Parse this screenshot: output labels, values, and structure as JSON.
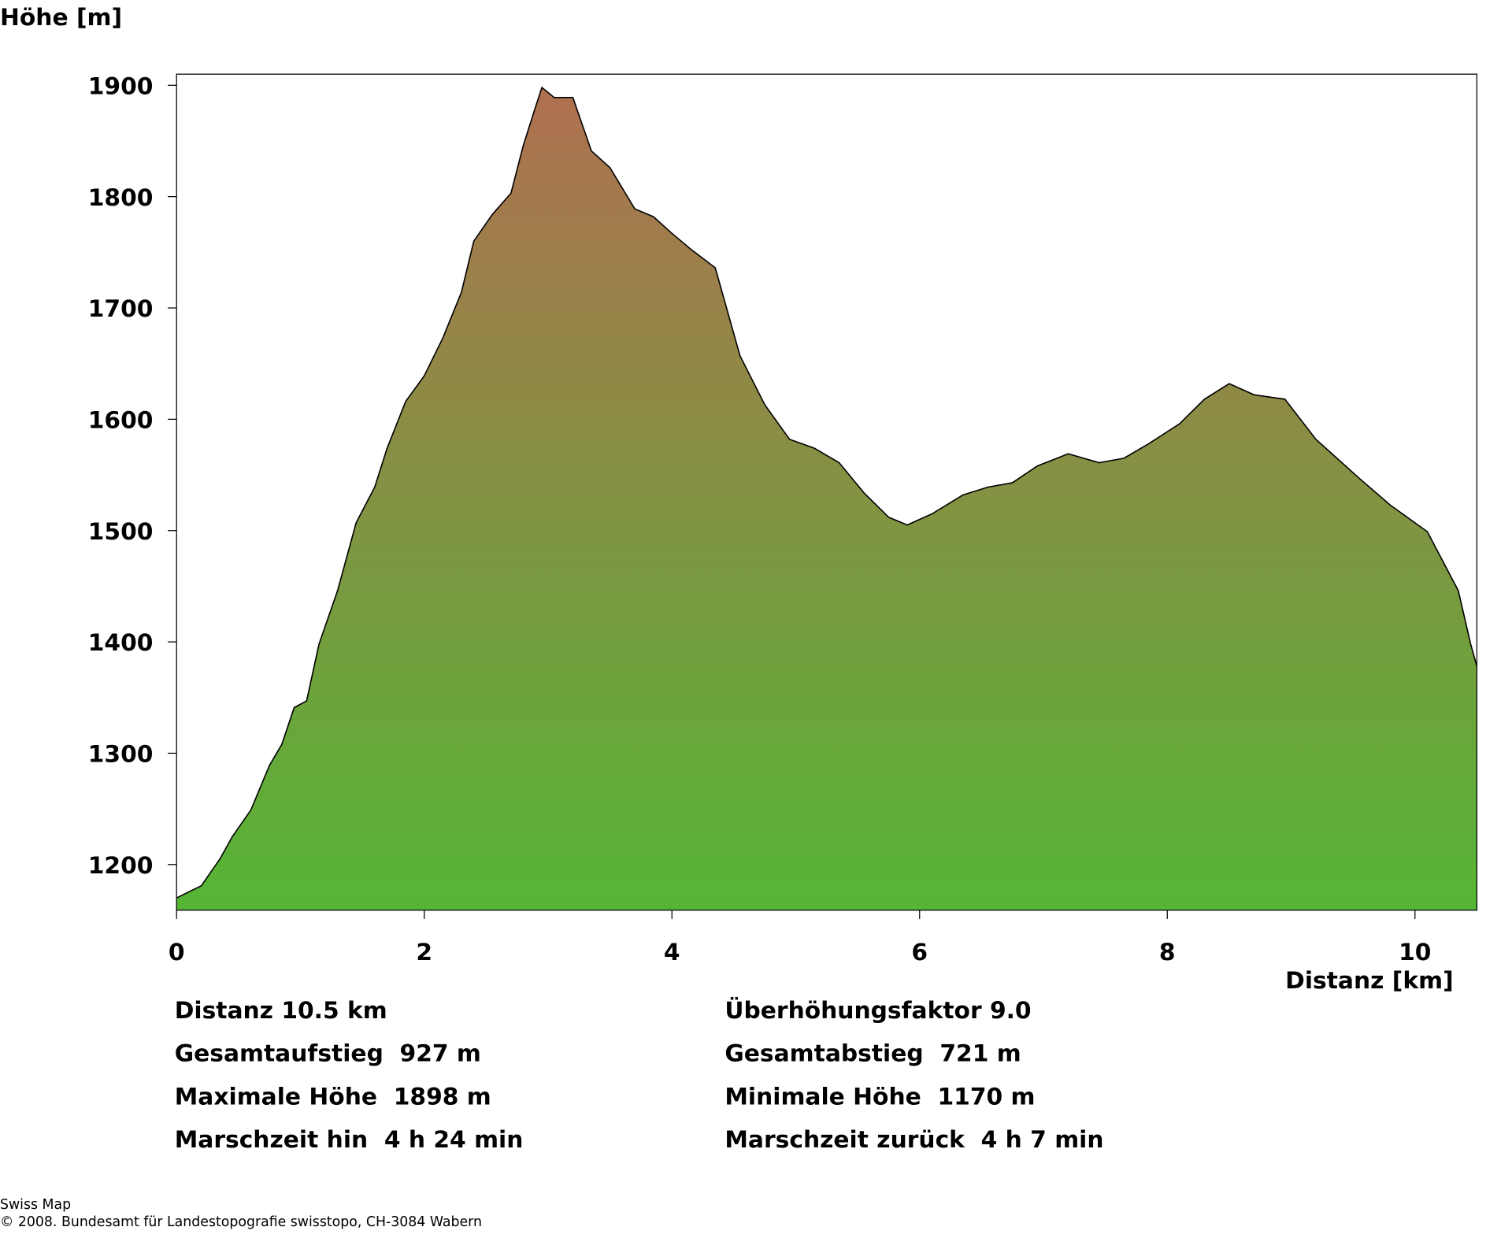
{
  "chart_data": {
    "type": "area",
    "y_label": "Höhe [m]",
    "x_label": "Distanz [km]",
    "x": [
      0,
      0.2,
      0.35,
      0.45,
      0.6,
      0.75,
      0.85,
      0.95,
      1.05,
      1.15,
      1.3,
      1.45,
      1.6,
      1.7,
      1.85,
      2.0,
      2.15,
      2.3,
      2.4,
      2.55,
      2.7,
      2.8,
      2.9,
      2.95,
      3.05,
      3.2,
      3.35,
      3.5,
      3.7,
      3.85,
      4.0,
      4.15,
      4.35,
      4.55,
      4.75,
      4.95,
      5.15,
      5.35,
      5.55,
      5.75,
      5.9,
      6.1,
      6.35,
      6.55,
      6.75,
      6.95,
      7.2,
      7.45,
      7.65,
      7.85,
      8.1,
      8.3,
      8.5,
      8.7,
      8.95,
      9.2,
      9.35,
      9.55,
      9.8,
      10.1,
      10.35,
      10.45,
      10.5
    ],
    "values": [
      1170,
      1181,
      1205,
      1225,
      1249,
      1289,
      1308,
      1341,
      1347,
      1398,
      1446,
      1507,
      1539,
      1574,
      1616,
      1639,
      1673,
      1714,
      1760,
      1784,
      1803,
      1846,
      1881,
      1898,
      1889,
      1889,
      1841,
      1826,
      1789,
      1782,
      1767,
      1753,
      1736,
      1657,
      1613,
      1582,
      1574,
      1561,
      1534,
      1512,
      1505,
      1515,
      1532,
      1539,
      1543,
      1558,
      1569,
      1561,
      1565,
      1578,
      1596,
      1618,
      1632,
      1622,
      1618,
      1582,
      1567,
      1547,
      1523,
      1499,
      1446,
      1398,
      1378
    ],
    "color_top": "#b07050",
    "color_bottom": "#55b535",
    "xlim": [
      0,
      10.5
    ],
    "xticks": [
      0,
      2,
      4,
      6,
      8,
      10
    ],
    "ylim": [
      1159,
      1910
    ],
    "yticks": [
      1200,
      1300,
      1400,
      1500,
      1600,
      1700,
      1800,
      1900
    ]
  },
  "stats": {
    "left": [
      "Distanz 10.5 km",
      "Gesamtaufstieg  927 m",
      "Maximale Höhe  1898 m",
      "Marschzeit hin  4 h 24 min"
    ],
    "right": [
      "Überhöhungsfaktor 9.0",
      "Gesamtabstieg  721 m",
      "Minimale Höhe  1170 m",
      "Marschzeit zurück  4 h 7 min"
    ]
  },
  "footer": [
    "Swiss Map",
    "© 2008. Bundesamt für Landestopografie swisstopo, CH-3084 Wabern"
  ]
}
